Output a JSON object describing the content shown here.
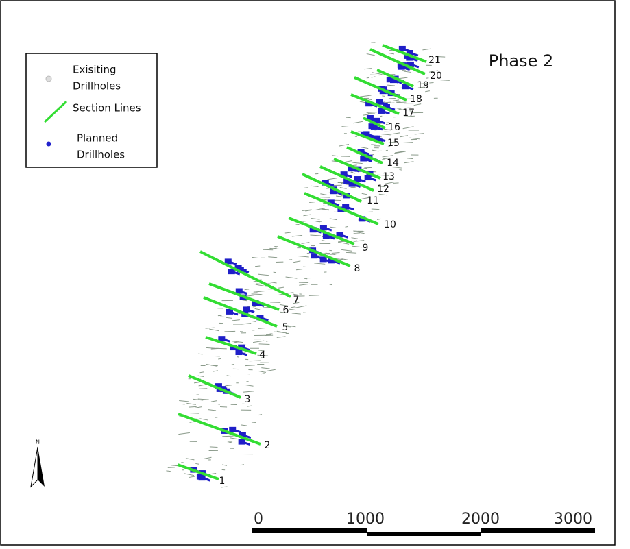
{
  "title": "Phase 2",
  "legend": {
    "items": [
      {
        "lines": [
          "Exisiting",
          "Drillholes"
        ]
      },
      {
        "lines": [
          "Section Lines"
        ]
      },
      {
        "lines": [
          "Planned",
          "Drillholes"
        ]
      }
    ]
  },
  "sections": [
    "1",
    "2",
    "3",
    "4",
    "5",
    "6",
    "7",
    "8",
    "9",
    "10",
    "11",
    "12",
    "13",
    "14",
    "15",
    "16",
    "17",
    "18",
    "19",
    "20",
    "21"
  ],
  "scale_bar": {
    "labels": [
      "0",
      "1000",
      "2000",
      "3000"
    ]
  },
  "north_arrow": "N"
}
